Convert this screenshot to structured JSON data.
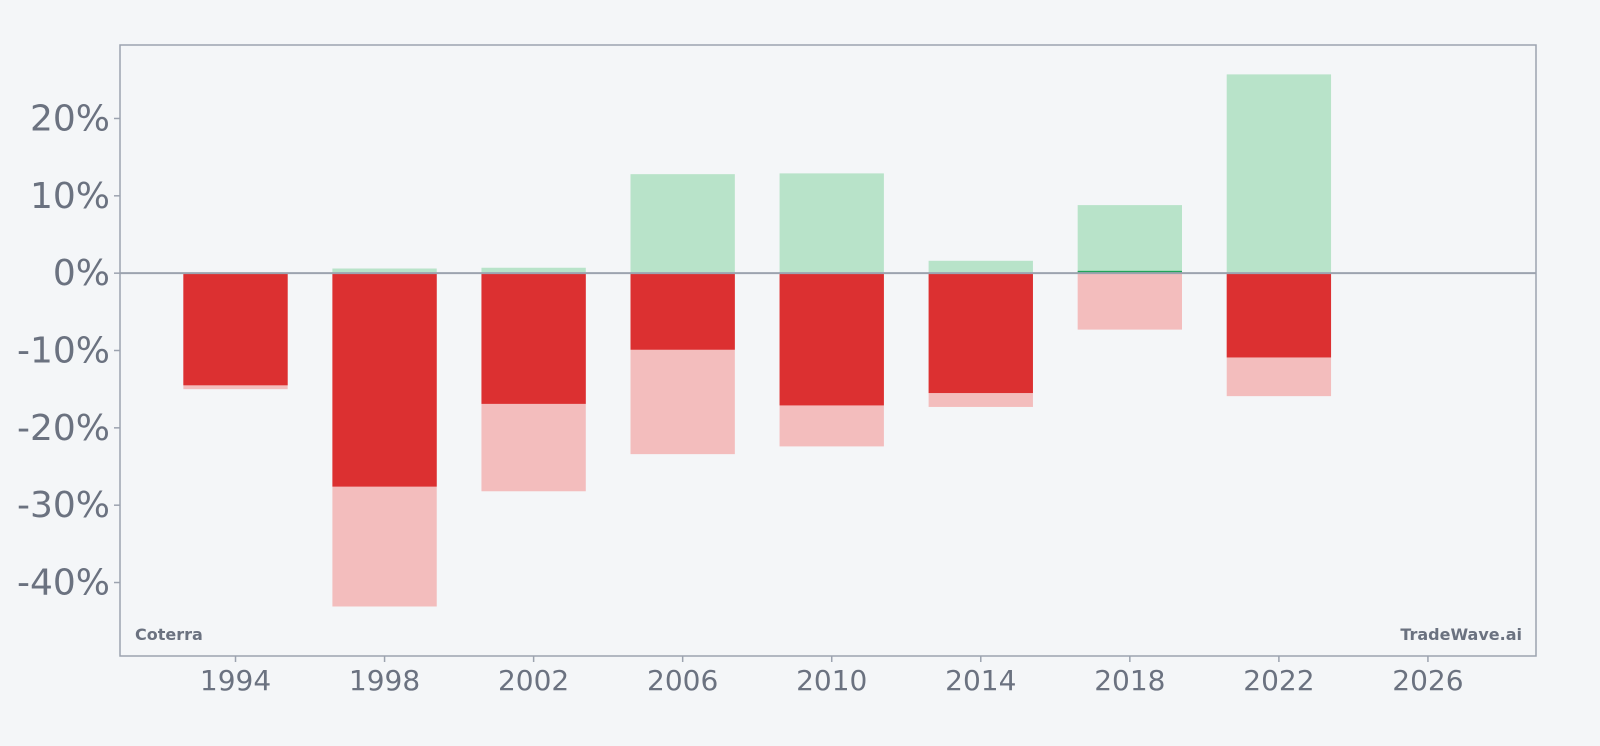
{
  "chart_data": {
    "type": "bar",
    "title": "",
    "xlabel": "",
    "ylabel": "",
    "colors": {
      "gain": "#b8e3c9",
      "net_positive": "#22a55a",
      "loss_light": "#f3bdbd",
      "loss_dark": "#dc3031",
      "frame": "#9ca3af",
      "zero_line": "#9ca3af",
      "text": "#6b7280",
      "background": "#f4f6f8"
    },
    "xlim": [
      1990.9,
      2028.9
    ],
    "ylim": [
      -49.5,
      29.5
    ],
    "x_ticks": [
      1994,
      1998,
      2002,
      2006,
      2010,
      2014,
      2018,
      2022,
      2026
    ],
    "x_tick_labels": [
      "1994",
      "1998",
      "2002",
      "2006",
      "2010",
      "2014",
      "2018",
      "2022",
      "2026"
    ],
    "y_ticks": [
      -40,
      -30,
      -20,
      -10,
      0,
      10,
      20
    ],
    "y_tick_labels": [
      "-40%",
      "-30%",
      "-20%",
      "-10%",
      "0%",
      "10%",
      "20%"
    ],
    "bar_width_years": 2.8,
    "grid": false,
    "bars": [
      {
        "x": 1994,
        "max_gain": 0.0,
        "max_loss": -15.0,
        "net": -14.5
      },
      {
        "x": 1998,
        "max_gain": 0.6,
        "max_loss": -43.1,
        "net": -27.6
      },
      {
        "x": 2002,
        "max_gain": 0.7,
        "max_loss": -28.2,
        "net": -16.9
      },
      {
        "x": 2006,
        "max_gain": 12.8,
        "max_loss": -23.4,
        "net": -9.9
      },
      {
        "x": 2010,
        "max_gain": 12.9,
        "max_loss": -22.4,
        "net": -17.1
      },
      {
        "x": 2014,
        "max_gain": 1.6,
        "max_loss": -17.3,
        "net": -15.5
      },
      {
        "x": 2018,
        "max_gain": 8.8,
        "max_loss": -7.3,
        "net": 0.3
      },
      {
        "x": 2022,
        "max_gain": 25.7,
        "max_loss": -15.9,
        "net": -10.9
      }
    ]
  },
  "watermarks": {
    "left": "Coterra",
    "right": "TradeWave.ai"
  }
}
